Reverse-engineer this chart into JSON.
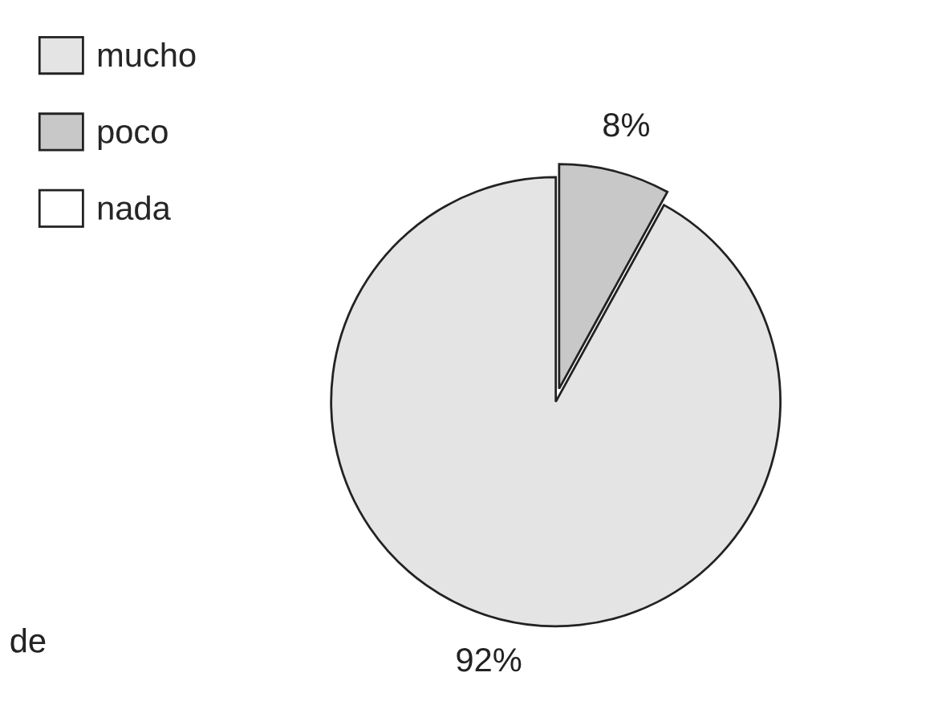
{
  "chart_data": {
    "type": "pie",
    "categories": [
      "mucho",
      "poco",
      "nada"
    ],
    "values": [
      92,
      8,
      0
    ],
    "colors": [
      "#e4e4e4",
      "#c8c8c8",
      "#ffffff"
    ],
    "value_labels": [
      "92%",
      "8%",
      null
    ],
    "legend": "top left",
    "annotations": [
      "de"
    ]
  }
}
